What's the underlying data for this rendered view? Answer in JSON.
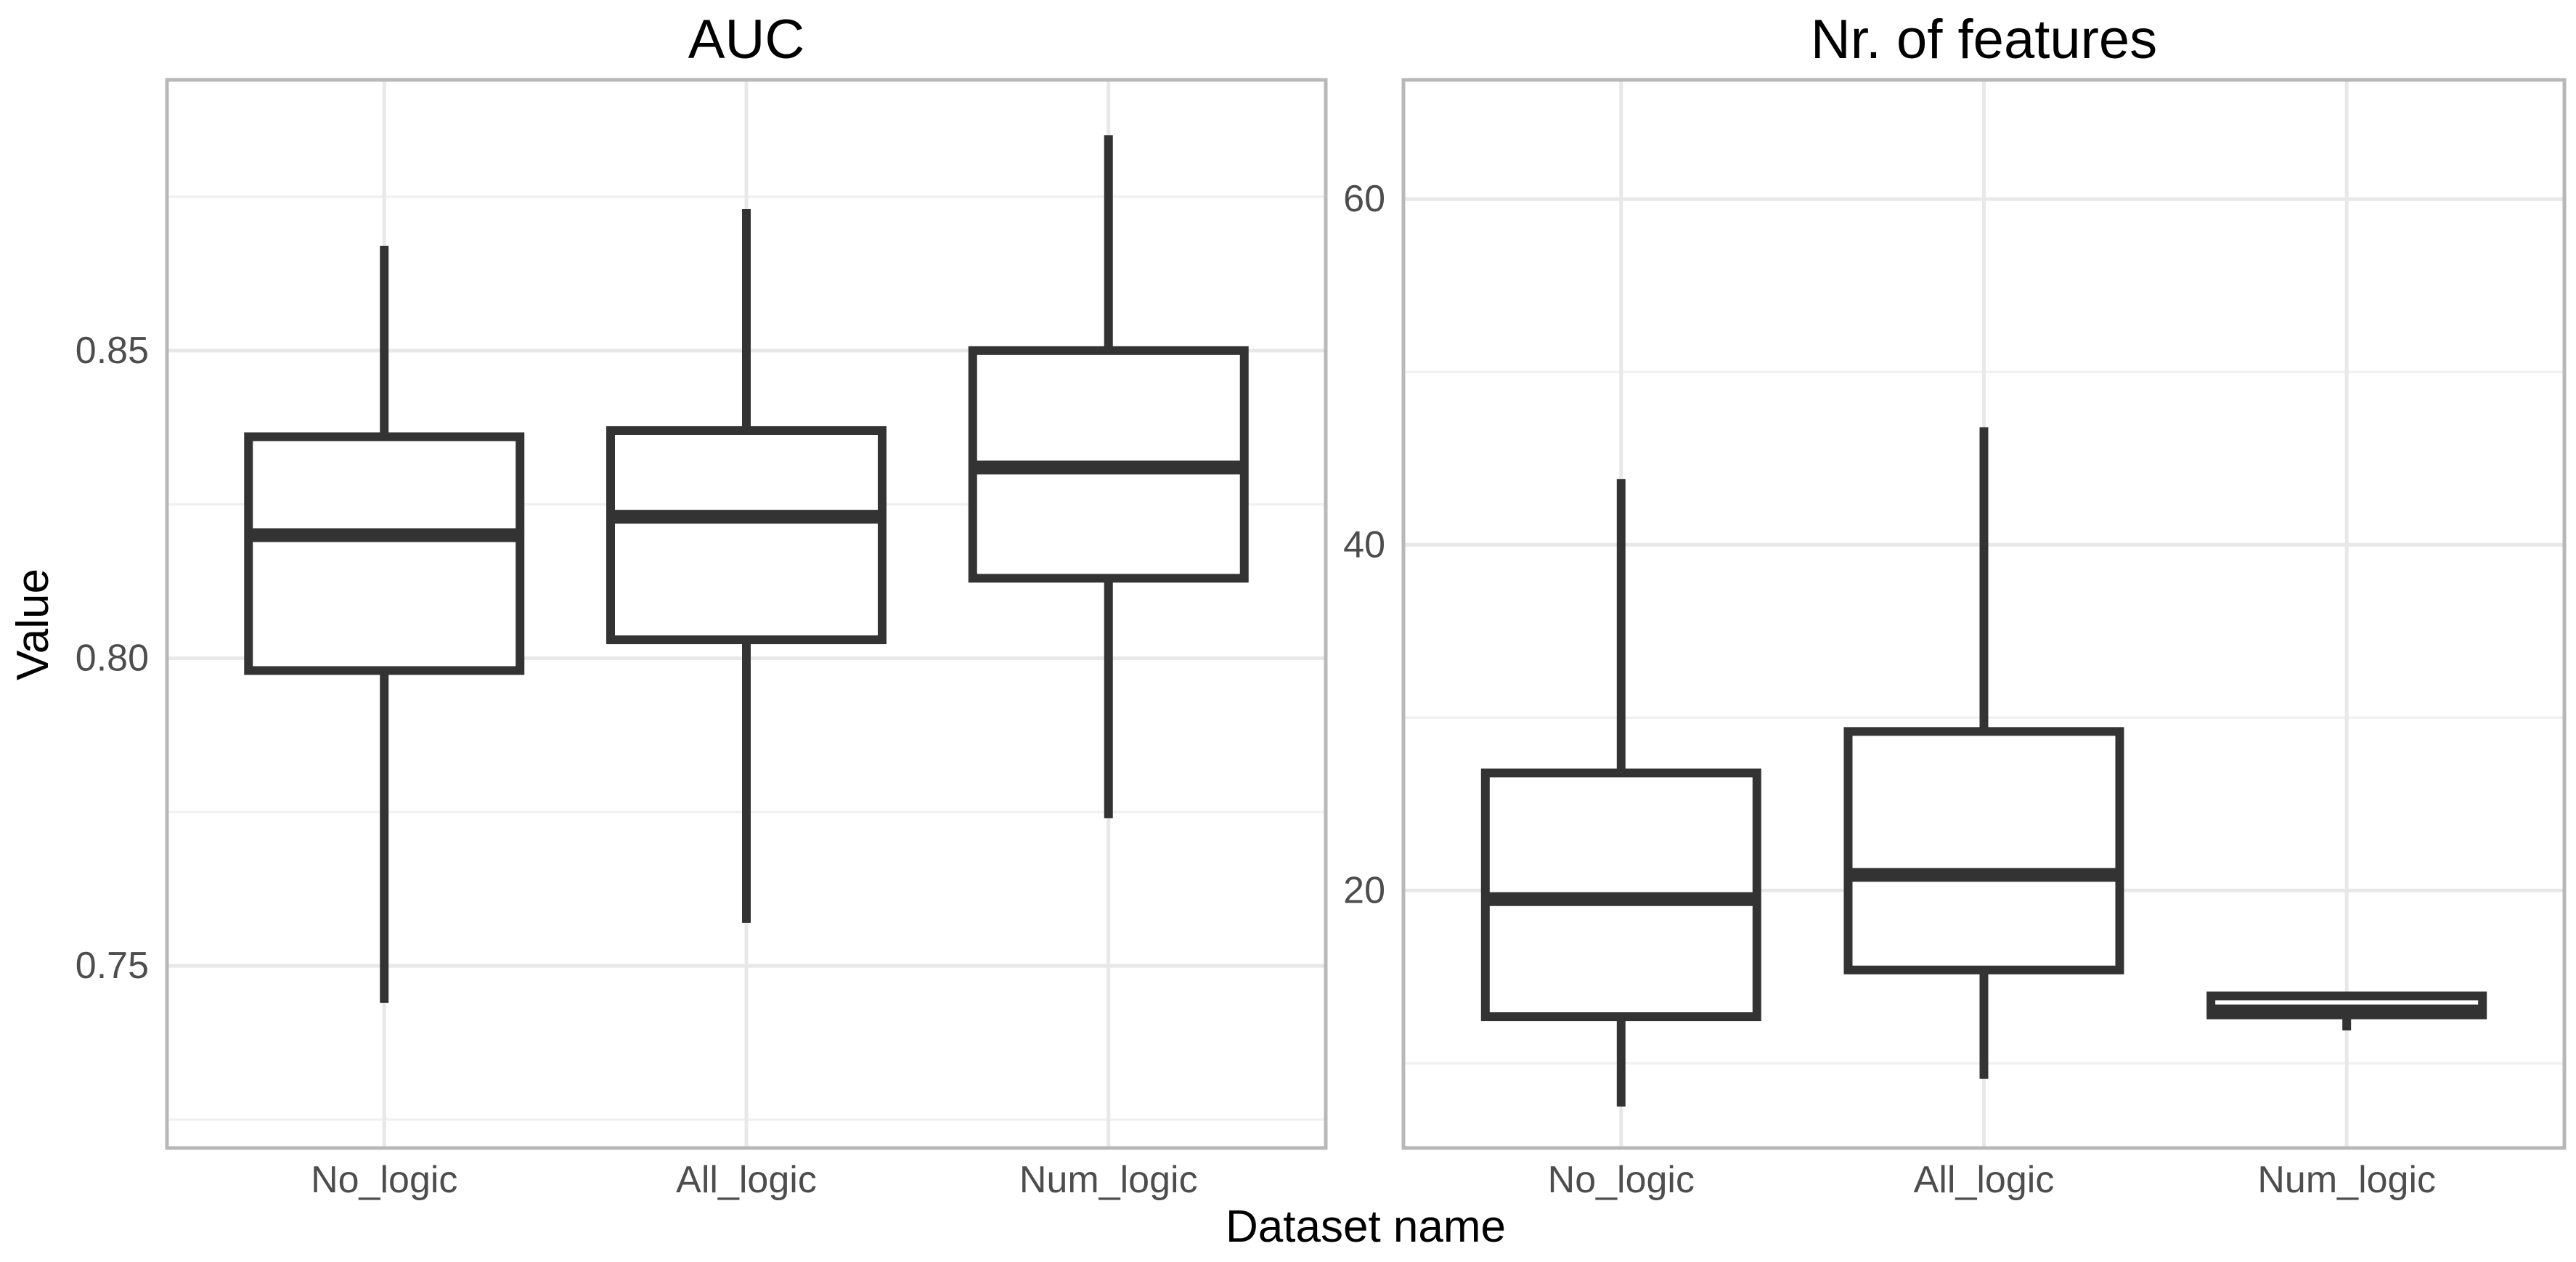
{
  "figure": {
    "xlabel": "Dataset name",
    "ylabel": "Value",
    "background": "#ffffff"
  },
  "colors": {
    "box_stroke": "#333333",
    "box_fill": "#ffffff",
    "grid_major": "#e8e8e8",
    "grid_minor": "#f1f1f1",
    "panel_border": "#b8b8b8",
    "tick_text": "#4d4d4d",
    "title_text": "#000000"
  },
  "chart_data": [
    {
      "type": "boxplot",
      "title": "AUC",
      "xlabel": "Dataset name",
      "ylabel": "Value",
      "categories": [
        "No_logic",
        "All_logic",
        "Num_logic"
      ],
      "ylim": [
        0.7204,
        0.894
      ],
      "grid": true,
      "legend": false,
      "yticks": [
        {
          "value": 0.75,
          "label": "0.75"
        },
        {
          "value": 0.8,
          "label": "0.80"
        },
        {
          "value": 0.85,
          "label": "0.85"
        }
      ],
      "yticks_minor": [
        0.725,
        0.775,
        0.825,
        0.875
      ],
      "boxes": [
        {
          "category": "No_logic",
          "min": 0.744,
          "q1": 0.798,
          "median": 0.82,
          "q3": 0.836,
          "max": 0.867
        },
        {
          "category": "All_logic",
          "min": 0.757,
          "q1": 0.803,
          "median": 0.823,
          "q3": 0.837,
          "max": 0.873
        },
        {
          "category": "Num_logic",
          "min": 0.774,
          "q1": 0.813,
          "median": 0.831,
          "q3": 0.85,
          "max": 0.885
        }
      ]
    },
    {
      "type": "boxplot",
      "title": "Nr. of features",
      "xlabel": "Dataset name",
      "categories": [
        "No_logic",
        "All_logic",
        "Num_logic"
      ],
      "ylim": [
        5.1,
        66.9
      ],
      "grid": true,
      "legend": false,
      "yticks": [
        {
          "value": 20,
          "label": "20"
        },
        {
          "value": 40,
          "label": "40"
        },
        {
          "value": 60,
          "label": "60"
        }
      ],
      "yticks_minor": [
        10,
        30,
        50
      ],
      "boxes": [
        {
          "category": "No_logic",
          "min": 7.5,
          "q1": 12.7,
          "median": 19.5,
          "q3": 26.8,
          "max": 43.8
        },
        {
          "category": "All_logic",
          "min": 9.1,
          "q1": 15.4,
          "median": 20.9,
          "q3": 29.2,
          "max": 46.8
        },
        {
          "category": "Num_logic",
          "min": 11.9,
          "q1": 12.8,
          "median": 13.0,
          "q3": 13.9,
          "max": 13.9
        }
      ]
    }
  ]
}
